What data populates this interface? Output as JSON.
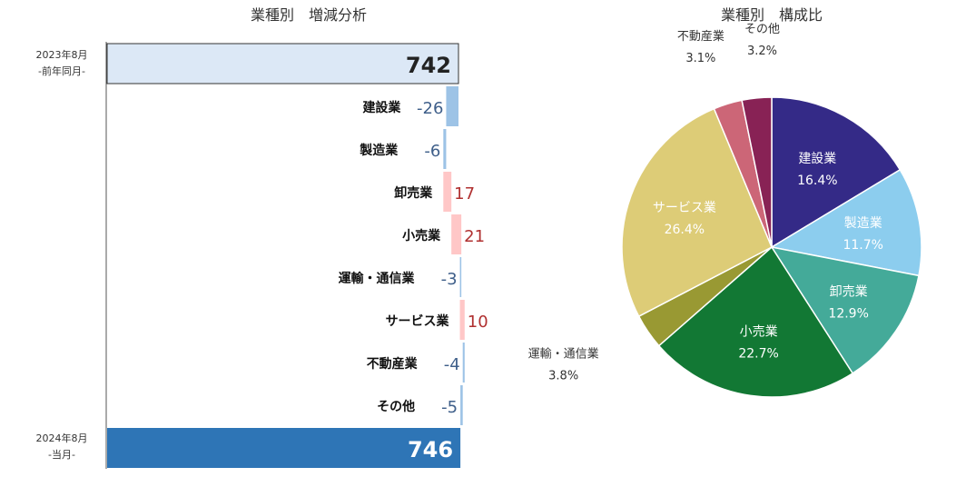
{
  "chart_data": [
    {
      "type": "bar",
      "subtype": "waterfall",
      "title": "業種別　増減分析",
      "start": {
        "label": "2023年8月",
        "sublabel": "-前年同月-",
        "value": 742,
        "value_label": "742",
        "color": "#dce8f6"
      },
      "end": {
        "label": "2024年8月",
        "sublabel": "-当月-",
        "value": 746,
        "value_label": "746",
        "color": "#2e75b6"
      },
      "categories": [
        "建設業",
        "製造業",
        "卸売業",
        "小売業",
        "運輸・通信業",
        "サービス業",
        "不動産業",
        "その他"
      ],
      "values": [
        -26,
        -6,
        17,
        21,
        -3,
        10,
        -4,
        -5
      ],
      "value_labels": [
        "-26",
        "-6",
        "17",
        "21",
        "-3",
        "10",
        "-4",
        "-5"
      ],
      "colors": {
        "decrease": "#9dc3e6",
        "increase": "#ffc7c7",
        "decrease_text": "#3f5f8a",
        "increase_text": "#b03030"
      }
    },
    {
      "type": "pie",
      "title": "業種別　構成比",
      "slices": [
        {
          "label": "建設業",
          "value": 16.4,
          "display": "16.4%",
          "color": "#342a87"
        },
        {
          "label": "製造業",
          "value": 11.7,
          "display": "11.7%",
          "color": "#8ccdee"
        },
        {
          "label": "卸売業",
          "value": 12.9,
          "display": "12.9%",
          "color": "#44aa99"
        },
        {
          "label": "小売業",
          "value": 22.7,
          "display": "22.7%",
          "color": "#127834"
        },
        {
          "label": "運輸・通信業",
          "value": 3.8,
          "display": "3.8%",
          "color": "#999933"
        },
        {
          "label": "サービス業",
          "value": 26.4,
          "display": "26.4%",
          "color": "#ddcc77"
        },
        {
          "label": "不動産業",
          "value": 3.1,
          "display": "3.1%",
          "color": "#cc6677"
        },
        {
          "label": "その他",
          "value": 3.2,
          "display": "3.2%",
          "color": "#882255"
        }
      ]
    }
  ]
}
